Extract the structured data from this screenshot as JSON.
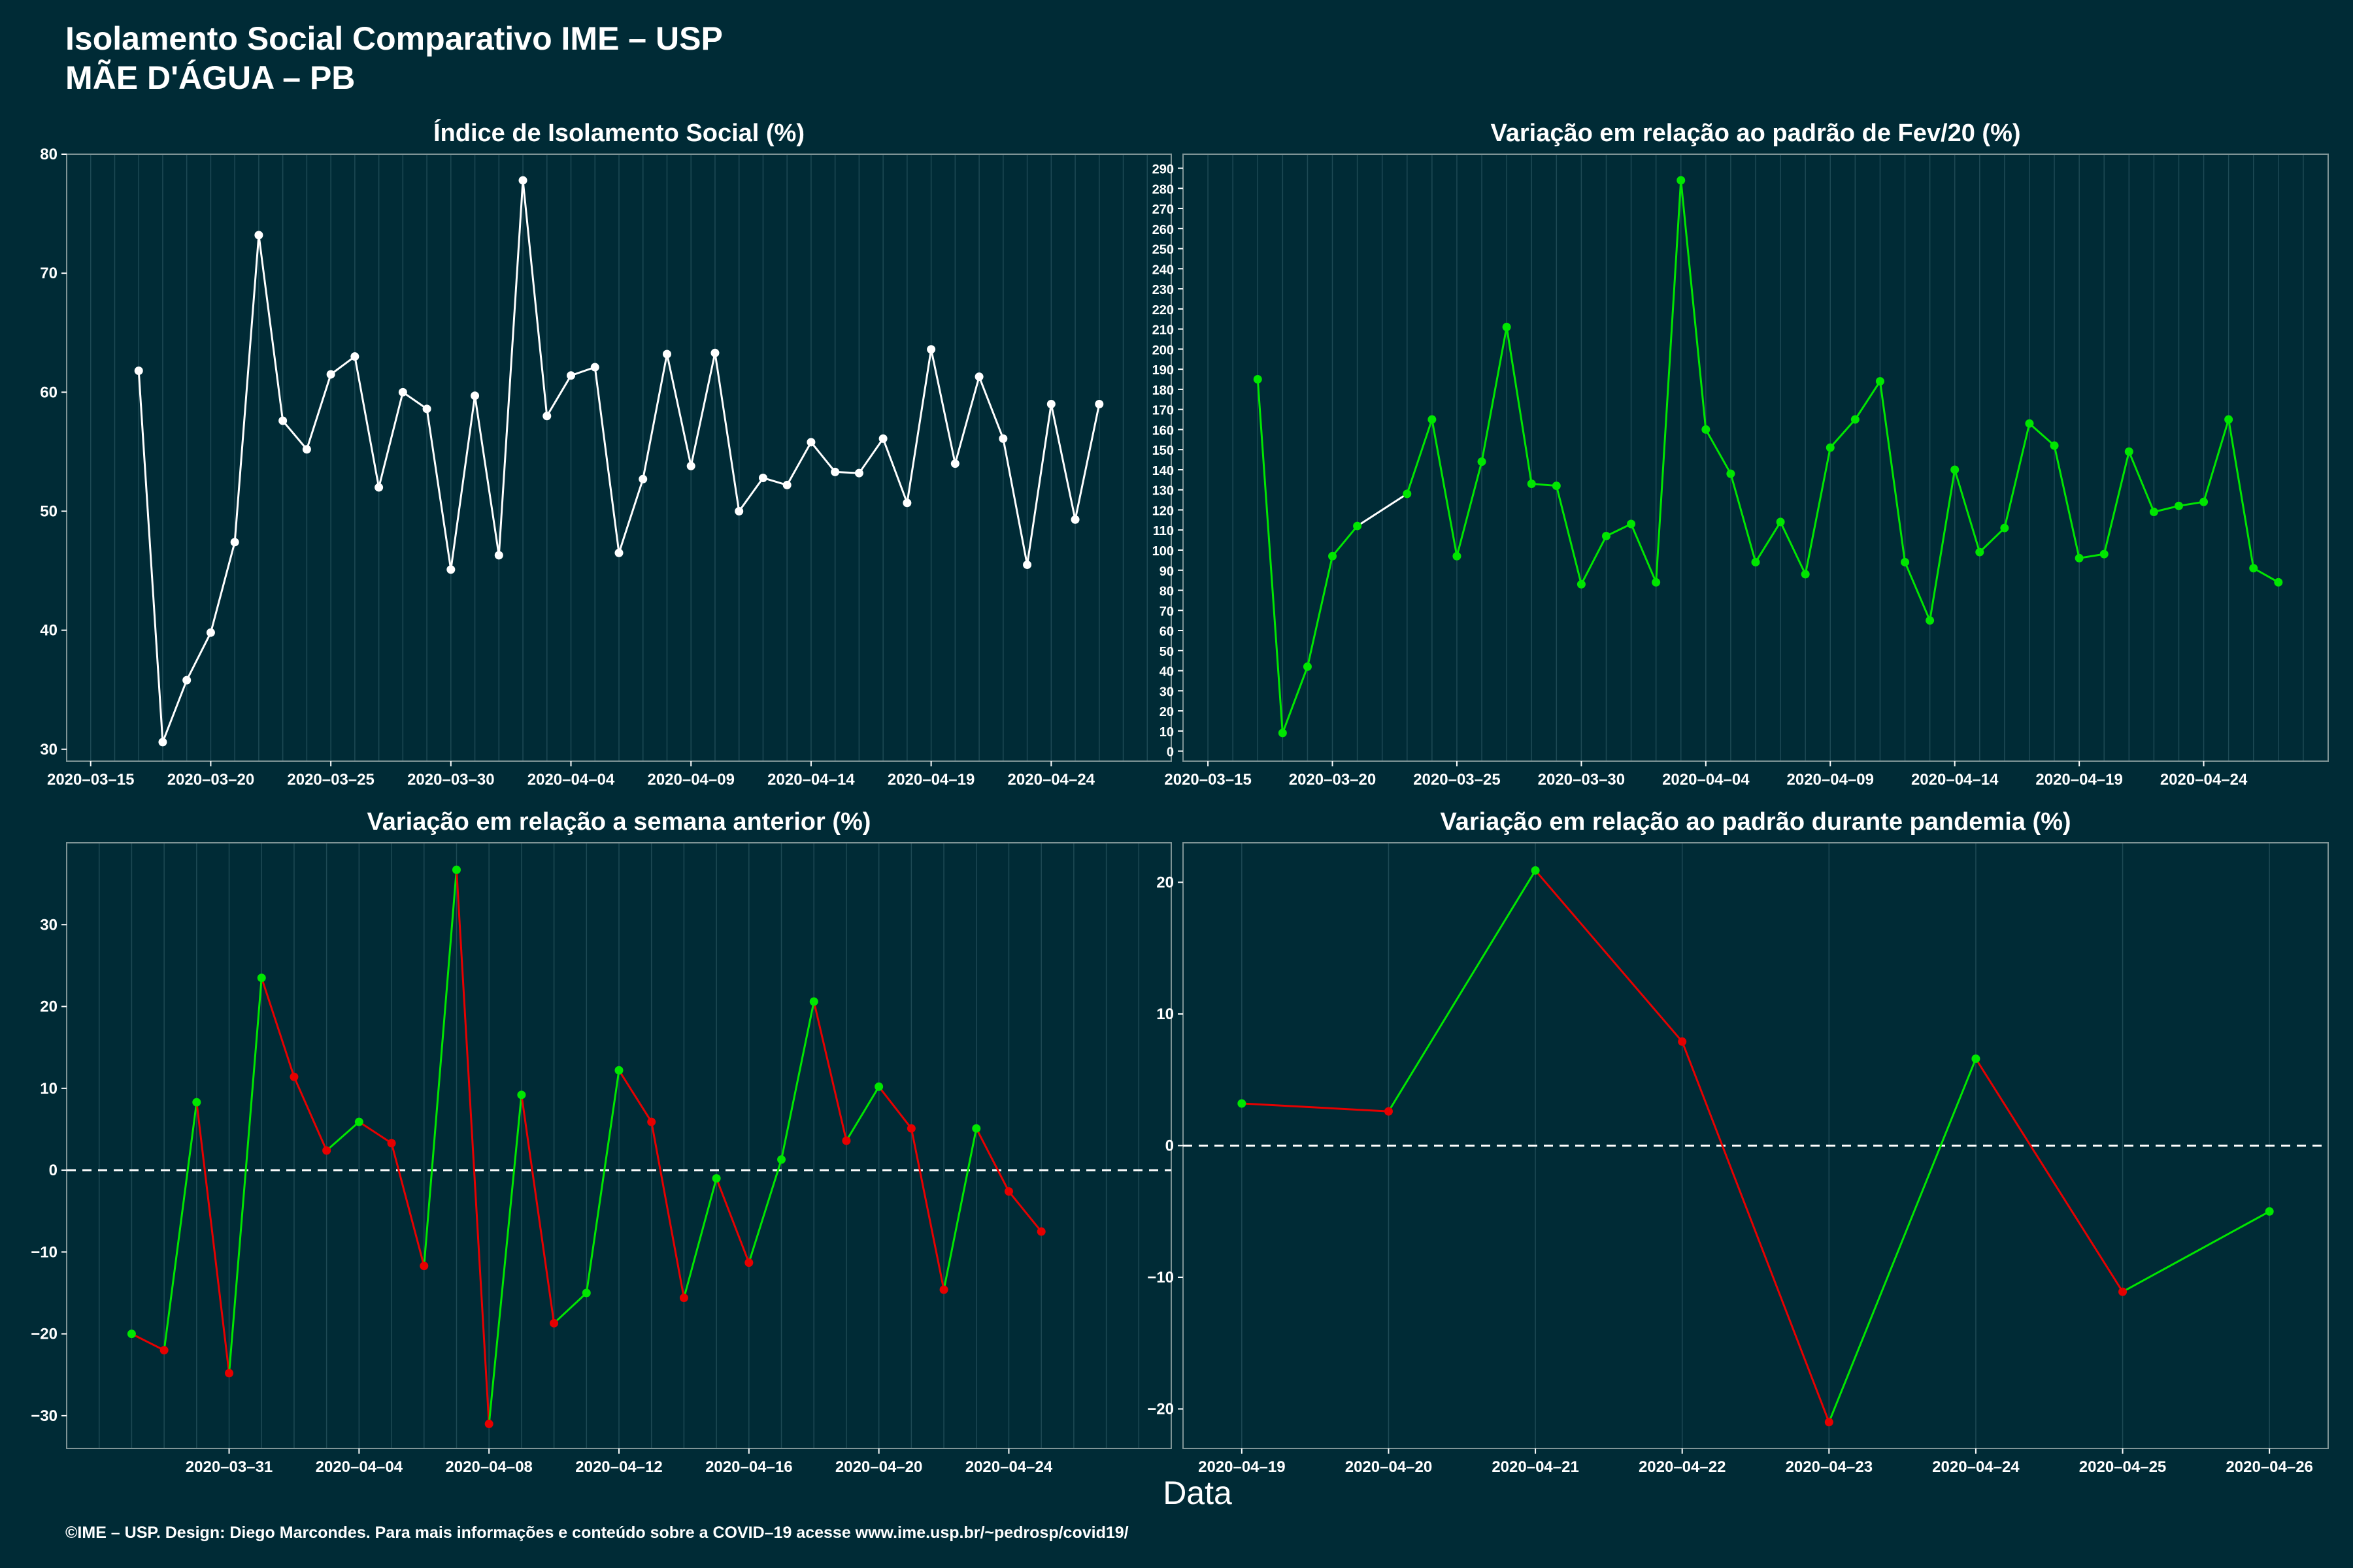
{
  "header": {
    "title_line1": "Isolamento Social Comparativo IME – USP",
    "title_line2": "MÃE D'ÁGUA – PB"
  },
  "shared_xlabel": "Data",
  "footer": "©IME – USP. Design: Diego Marcondes. Para mais informações e conteúdo sobre a COVID–19 acesse www.ime.usp.br/~pedrosp/covid19/",
  "colors": {
    "background": "#002b36",
    "panel_border": "#7f9496",
    "grid": "#1e4a55",
    "white_line": "#ffffff",
    "positive": "#00e600",
    "negative": "#e60000",
    "zero_line": "#ffffff"
  },
  "chart_data": [
    {
      "id": "isolation-index",
      "type": "line",
      "title": "Índice de Isolamento Social (%)",
      "color": "white",
      "ylim": [
        29,
        80
      ],
      "yticks": [
        30,
        40,
        50,
        60,
        70,
        80
      ],
      "x_start": "2020-03-17",
      "x_range": [
        "2020-03-14",
        "2020-04-29"
      ],
      "xticks": [
        "2020-03-15",
        "2020-03-20",
        "2020-03-25",
        "2020-03-30",
        "2020-04-04",
        "2020-04-09",
        "2020-04-14",
        "2020-04-19",
        "2020-04-24"
      ],
      "values": [
        61.8,
        30.6,
        35.8,
        39.8,
        47.4,
        73.2,
        57.6,
        55.2,
        61.5,
        63.0,
        52.0,
        60.0,
        58.6,
        45.1,
        59.7,
        46.3,
        77.8,
        58.0,
        61.4,
        62.1,
        46.5,
        52.7,
        63.2,
        53.8,
        63.3,
        50.0,
        52.8,
        52.2,
        55.8,
        53.3,
        53.2,
        56.1,
        50.7,
        63.6,
        54.0,
        61.3,
        56.1,
        45.5,
        59.0,
        49.3,
        59.0
      ]
    },
    {
      "id": "variation-feb",
      "type": "line",
      "title": "Variação em relação ao padrão de Fev/20 (%)",
      "color": "green_white_missing",
      "ylim": [
        -5,
        297
      ],
      "yticks": [
        0,
        10,
        20,
        30,
        40,
        50,
        60,
        70,
        80,
        90,
        100,
        110,
        120,
        130,
        140,
        150,
        160,
        170,
        180,
        190,
        200,
        210,
        220,
        230,
        240,
        250,
        260,
        270,
        280,
        290
      ],
      "x_start": "2020-03-17",
      "x_range": [
        "2020-03-14",
        "2020-04-29"
      ],
      "xticks": [
        "2020-03-15",
        "2020-03-20",
        "2020-03-25",
        "2020-03-30",
        "2020-04-04",
        "2020-04-09",
        "2020-04-14",
        "2020-04-19",
        "2020-04-24"
      ],
      "values": [
        185,
        9,
        42,
        97,
        112,
        null,
        128,
        165,
        97,
        144,
        211,
        133,
        132,
        83,
        107,
        113,
        84,
        284,
        160,
        138,
        94,
        114,
        88,
        151,
        165,
        184,
        94,
        65,
        140,
        99,
        111,
        163,
        152,
        96,
        98,
        149,
        119,
        122,
        124,
        165,
        91,
        84
      ]
    },
    {
      "id": "variation-week",
      "type": "line",
      "title": "Variação em relação a semana anterior (%)",
      "color": "sign",
      "ylim": [
        -34,
        40
      ],
      "yticks": [
        -30,
        -20,
        -10,
        0,
        10,
        20,
        30
      ],
      "zero_line": true,
      "x_start": "2020-03-28",
      "x_range": [
        "2020-03-26",
        "2020-04-29"
      ],
      "xticks": [
        "2020-03-31",
        "2020-04-04",
        "2020-04-08",
        "2020-04-12",
        "2020-04-16",
        "2020-04-20",
        "2020-04-24"
      ],
      "values": [
        -20.0,
        -22.0,
        8.3,
        -24.8,
        23.5,
        11.4,
        2.4,
        5.9,
        3.3,
        -11.7,
        36.7,
        -31.0,
        9.2,
        -18.7,
        -15.0,
        12.2,
        5.9,
        -15.6,
        -1.0,
        -11.3,
        1.3,
        20.6,
        3.6,
        10.2,
        5.1,
        -14.6,
        5.1,
        -2.6,
        -7.5
      ]
    },
    {
      "id": "variation-pandemic",
      "type": "line",
      "title": "Variação em relação ao padrão durante pandemia (%)",
      "color": "sign",
      "ylim": [
        -23,
        23
      ],
      "yticks": [
        -20,
        -10,
        0,
        10,
        20
      ],
      "zero_line": true,
      "x_start": "2020-04-19",
      "x_range": [
        "2020-04-18.6",
        "2020-04-26.4"
      ],
      "xticks": [
        "2020-04-19",
        "2020-04-20",
        "2020-04-21",
        "2020-04-22",
        "2020-04-23",
        "2020-04-24",
        "2020-04-25",
        "2020-04-26"
      ],
      "values": [
        3.2,
        2.6,
        20.9,
        7.9,
        -21.0,
        6.6,
        -11.1,
        -5.0
      ]
    }
  ]
}
